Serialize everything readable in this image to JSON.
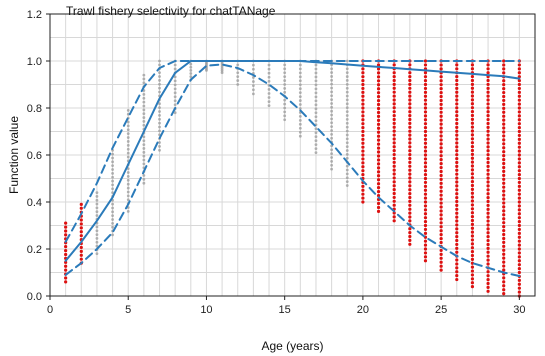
{
  "chart_data": {
    "type": "line",
    "title": "Trawl fishery selectivity for chatTANage",
    "xlabel": "Age (years)",
    "ylabel": "Function value",
    "xlim": [
      0,
      31
    ],
    "ylim": [
      0,
      1.2
    ],
    "xticks": [
      0,
      5,
      10,
      15,
      20,
      25,
      30
    ],
    "yticks": [
      0.0,
      0.2,
      0.4,
      0.6,
      0.8,
      1.0,
      1.2
    ],
    "ytick_labels": [
      "0.0",
      "0.2",
      "0.4",
      "0.6",
      "0.8",
      "1.0",
      "1.2"
    ],
    "grid": true,
    "colors": {
      "line": "#2b7bba",
      "observed_gray": "#9a9a9a",
      "observed_red": "#dd1111"
    },
    "series": [
      {
        "x": [
          1,
          2,
          3,
          4,
          5,
          6,
          7,
          8,
          9,
          10,
          11,
          12,
          13,
          14,
          15,
          16,
          17,
          18,
          19,
          20,
          21,
          22,
          23,
          24,
          25,
          26,
          27,
          28,
          29,
          30
        ],
        "values": [
          0.15,
          0.23,
          0.32,
          0.42,
          0.56,
          0.7,
          0.84,
          0.95,
          1.0,
          1.0,
          1.0,
          1.0,
          1.0,
          1.0,
          1.0,
          1.0,
          0.995,
          0.99,
          0.985,
          0.98,
          0.975,
          0.97,
          0.965,
          0.96,
          0.955,
          0.95,
          0.945,
          0.94,
          0.935,
          0.925
        ],
        "style": "solid"
      },
      {
        "x": [
          1,
          2,
          3,
          4,
          5,
          6,
          7,
          8,
          9,
          10,
          11,
          12,
          13,
          14,
          15,
          16,
          17,
          18,
          19,
          20,
          21,
          22,
          23,
          24,
          25,
          26,
          27,
          28,
          29,
          30
        ],
        "values": [
          0.23,
          0.35,
          0.48,
          0.63,
          0.76,
          0.89,
          0.97,
          1.0,
          1.0,
          1.0,
          1.0,
          1.0,
          1.0,
          1.0,
          1.0,
          1.0,
          1.0,
          1.0,
          1.0,
          1.0,
          1.0,
          1.0,
          1.0,
          1.0,
          1.0,
          1.0,
          1.0,
          1.0,
          1.0,
          1.0
        ],
        "style": "dashed"
      },
      {
        "x": [
          1,
          2,
          3,
          4,
          5,
          6,
          7,
          8,
          9,
          10,
          11,
          12,
          13,
          14,
          15,
          16,
          17,
          18,
          19,
          20,
          21,
          22,
          23,
          24,
          25,
          26,
          27,
          28,
          29,
          30
        ],
        "values": [
          0.09,
          0.14,
          0.2,
          0.27,
          0.39,
          0.53,
          0.67,
          0.8,
          0.92,
          0.98,
          0.985,
          0.97,
          0.94,
          0.9,
          0.85,
          0.79,
          0.72,
          0.65,
          0.57,
          0.49,
          0.42,
          0.36,
          0.3,
          0.25,
          0.21,
          0.17,
          0.14,
          0.12,
          0.1,
          0.085
        ],
        "style": "dashed"
      }
    ],
    "observed_ranges": [
      {
        "age": 1,
        "low": 0.06,
        "high": 0.31,
        "color": "red"
      },
      {
        "age": 2,
        "low": 0.14,
        "high": 0.39,
        "color": "red"
      },
      {
        "age": 3,
        "low": 0.18,
        "high": 0.44,
        "color": "gray"
      },
      {
        "age": 4,
        "low": 0.26,
        "high": 0.62,
        "color": "gray"
      },
      {
        "age": 5,
        "low": 0.36,
        "high": 0.79,
        "color": "gray"
      },
      {
        "age": 6,
        "low": 0.48,
        "high": 0.94,
        "color": "gray"
      },
      {
        "age": 7,
        "low": 0.62,
        "high": 1.0,
        "color": "gray"
      },
      {
        "age": 8,
        "low": 0.78,
        "high": 1.0,
        "color": "gray"
      },
      {
        "age": 9,
        "low": 0.92,
        "high": 1.0,
        "color": "gray"
      },
      {
        "age": 10,
        "low": 0.96,
        "high": 1.0,
        "color": "gray"
      },
      {
        "age": 11,
        "low": 0.95,
        "high": 1.0,
        "color": "gray"
      },
      {
        "age": 12,
        "low": 0.9,
        "high": 1.0,
        "color": "gray"
      },
      {
        "age": 13,
        "low": 0.86,
        "high": 1.0,
        "color": "gray"
      },
      {
        "age": 14,
        "low": 0.81,
        "high": 1.0,
        "color": "gray"
      },
      {
        "age": 15,
        "low": 0.75,
        "high": 1.0,
        "color": "gray"
      },
      {
        "age": 16,
        "low": 0.68,
        "high": 1.0,
        "color": "gray"
      },
      {
        "age": 17,
        "low": 0.61,
        "high": 1.0,
        "color": "gray"
      },
      {
        "age": 18,
        "low": 0.54,
        "high": 1.0,
        "color": "gray"
      },
      {
        "age": 19,
        "low": 0.47,
        "high": 1.0,
        "color": "gray"
      },
      {
        "age": 20,
        "low": 0.4,
        "high": 1.0,
        "color": "red"
      },
      {
        "age": 21,
        "low": 0.36,
        "high": 1.0,
        "color": "red"
      },
      {
        "age": 22,
        "low": 0.32,
        "high": 1.0,
        "color": "red"
      },
      {
        "age": 23,
        "low": 0.22,
        "high": 1.0,
        "color": "red"
      },
      {
        "age": 24,
        "low": 0.15,
        "high": 1.0,
        "color": "red"
      },
      {
        "age": 25,
        "low": 0.11,
        "high": 1.0,
        "color": "red"
      },
      {
        "age": 26,
        "low": 0.07,
        "high": 1.0,
        "color": "red"
      },
      {
        "age": 27,
        "low": 0.04,
        "high": 1.0,
        "color": "red"
      },
      {
        "age": 28,
        "low": 0.02,
        "high": 1.0,
        "color": "red"
      },
      {
        "age": 29,
        "low": 0.01,
        "high": 1.0,
        "color": "red"
      },
      {
        "age": 30,
        "low": 0.0,
        "high": 1.0,
        "color": "red"
      }
    ]
  }
}
